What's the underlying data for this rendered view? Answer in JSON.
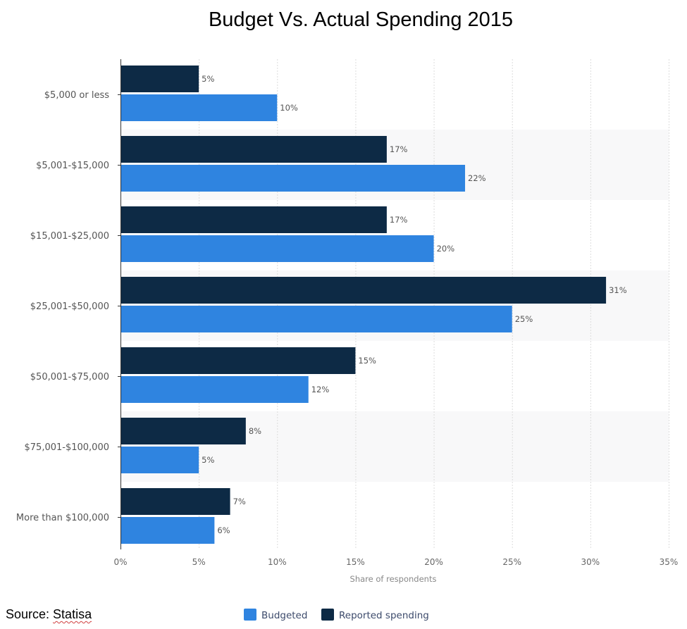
{
  "chart_data": {
    "type": "bar",
    "orientation": "horizontal",
    "title": "Budget Vs. Actual Spending 2015",
    "categories": [
      "$5,000 or less",
      "$5,001-$15,000",
      "$15,001-$25,000",
      "$25,001-$50,000",
      "$50,001-$75,000",
      "$75,001-$100,000",
      "More than $100,000"
    ],
    "series": [
      {
        "name": "Reported spending",
        "color": "#0d2a45",
        "values": [
          5,
          17,
          17,
          31,
          15,
          8,
          7
        ],
        "labels": [
          "5%",
          "17%",
          "17%",
          "31%",
          "15%",
          "8%",
          "7%"
        ]
      },
      {
        "name": "Budgeted",
        "color": "#2f84e0",
        "values": [
          10,
          22,
          20,
          25,
          12,
          5,
          6
        ],
        "labels": [
          "10%",
          "22%",
          "20%",
          "25%",
          "12%",
          "5%",
          "6%"
        ]
      }
    ],
    "xlabel": "Share of respondents",
    "ylabel": "",
    "xlim": [
      0,
      35
    ],
    "xticks": [
      0,
      5,
      10,
      15,
      20,
      25,
      30,
      35
    ],
    "xtick_labels": [
      "0%",
      "5%",
      "10%",
      "15%",
      "20%",
      "25%",
      "30%",
      "35%"
    ],
    "grid": true,
    "legend": {
      "position": "bottom-center",
      "order": [
        "Budgeted",
        "Reported spending"
      ]
    }
  },
  "source": {
    "prefix": "Source: ",
    "name": "Statisa"
  }
}
